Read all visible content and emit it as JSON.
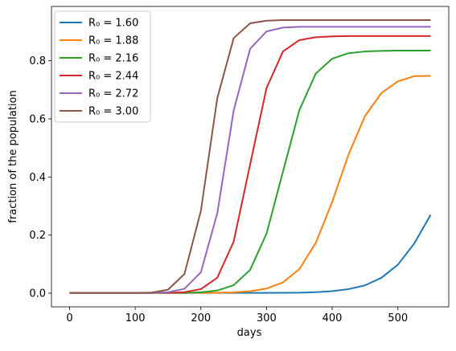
{
  "chart_data": {
    "type": "line",
    "x_label": "days",
    "y_label": "fraction of the population",
    "x": [
      0,
      25,
      50,
      75,
      100,
      125,
      150,
      175,
      200,
      225,
      250,
      275,
      300,
      325,
      350,
      375,
      400,
      425,
      450,
      475,
      500,
      525,
      550
    ],
    "series": [
      {
        "name": "R₀ = 1.60",
        "color": "#1f77b4",
        "values": [
          0.001,
          0.001,
          0.001,
          0.001,
          0.001,
          0.001,
          0.001,
          0.001,
          0.001,
          0.001,
          0.001,
          0.001,
          0.0012,
          0.0015,
          0.0017,
          0.0035,
          0.007,
          0.014,
          0.027,
          0.053,
          0.098,
          0.171,
          0.27
        ]
      },
      {
        "name": "R₀ = 1.88",
        "color": "#ff7f0e",
        "values": [
          0.001,
          0.001,
          0.001,
          0.001,
          0.001,
          0.001,
          0.001,
          0.001,
          0.0012,
          0.0015,
          0.0028,
          0.0067,
          0.0158,
          0.037,
          0.083,
          0.173,
          0.314,
          0.478,
          0.61,
          0.689,
          0.729,
          0.747,
          0.748
        ]
      },
      {
        "name": "R₀ = 2.16",
        "color": "#2ca02c",
        "values": [
          0.001,
          0.001,
          0.001,
          0.001,
          0.001,
          0.001,
          0.001,
          0.0012,
          0.003,
          0.0092,
          0.0276,
          0.08,
          0.205,
          0.418,
          0.63,
          0.756,
          0.807,
          0.826,
          0.832,
          0.834,
          0.835,
          0.835,
          0.835
        ]
      },
      {
        "name": "R₀ = 2.44",
        "color": "#d62728",
        "values": [
          0.001,
          0.001,
          0.001,
          0.001,
          0.001,
          0.001,
          0.0012,
          0.0036,
          0.014,
          0.053,
          0.178,
          0.443,
          0.706,
          0.832,
          0.871,
          0.881,
          0.884,
          0.885,
          0.885,
          0.885,
          0.885,
          0.885,
          0.885
        ]
      },
      {
        "name": "R₀ = 2.72",
        "color": "#9467bd",
        "values": [
          0.001,
          0.001,
          0.001,
          0.001,
          0.001,
          0.0012,
          0.003,
          0.015,
          0.072,
          0.275,
          0.629,
          0.841,
          0.901,
          0.914,
          0.917,
          0.917,
          0.917,
          0.917,
          0.917,
          0.917,
          0.917,
          0.917,
          0.917
        ]
      },
      {
        "name": "R₀ = 3.00",
        "color": "#8c564b",
        "values": [
          0.001,
          0.001,
          0.001,
          0.001,
          0.0012,
          0.0021,
          0.012,
          0.066,
          0.283,
          0.671,
          0.878,
          0.929,
          0.938,
          0.94,
          0.94,
          0.94,
          0.94,
          0.94,
          0.94,
          0.94,
          0.94,
          0.94,
          0.94
        ]
      }
    ],
    "xlim": [
      -27.5,
      577.5
    ],
    "ylim": [
      -0.047,
      0.987
    ],
    "xticks": [
      0,
      100,
      200,
      300,
      400,
      500
    ],
    "yticks": [
      {
        "value": 0,
        "label": "0.0"
      },
      {
        "value": 0.2,
        "label": "0.2"
      },
      {
        "value": 0.4,
        "label": "0.4"
      },
      {
        "value": 0.6,
        "label": "0.6"
      },
      {
        "value": 0.8,
        "label": "0.8"
      }
    ],
    "legend": "upper left",
    "grid": false
  }
}
